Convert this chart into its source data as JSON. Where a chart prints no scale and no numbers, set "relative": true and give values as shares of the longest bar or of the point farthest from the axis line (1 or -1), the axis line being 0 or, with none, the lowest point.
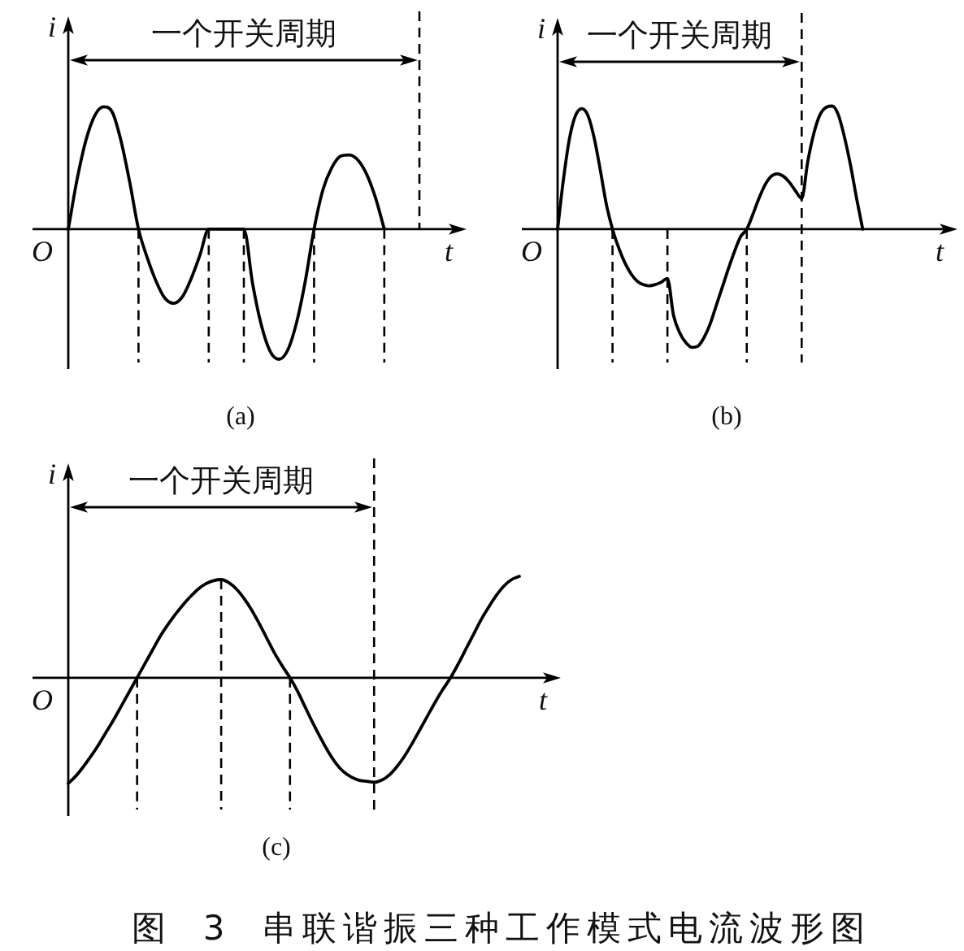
{
  "chart_data": [
    {
      "type": "line",
      "title": "(a)",
      "xlabel": "t",
      "ylabel": "i",
      "annotations": [
        "一个开关周期",
        "O"
      ],
      "relative": true,
      "tick_labels": false,
      "marker": "none",
      "line_style": "solid",
      "categories": [
        null,
        null,
        null,
        null,
        null,
        null,
        null,
        null,
        null,
        null,
        null,
        null,
        null,
        null,
        null,
        null,
        null,
        null,
        null,
        null,
        null,
        null,
        null,
        null,
        null,
        null,
        null,
        null,
        null,
        null,
        null,
        null,
        null,
        null,
        null,
        null,
        null,
        null,
        null,
        null,
        null,
        null,
        null,
        null,
        null,
        null
      ],
      "series": [
        {
          "color": "#000000",
          "values": [
            0,
            0.38,
            0.68,
            0.87,
            0.94,
            0.9,
            0.68,
            0.36,
            0,
            -0.22,
            -0.4,
            -0.53,
            -0.57,
            -0.52,
            -0.38,
            -0.2,
            0,
            0,
            0,
            0,
            0,
            -0.42,
            -0.74,
            -0.94,
            -1,
            -0.93,
            -0.72,
            -0.4,
            0,
            0.3,
            0.47,
            0.56,
            0.57,
            0.53,
            0.42,
            0.24,
            0,
            null,
            null,
            null,
            null,
            null,
            null,
            null,
            null,
            null
          ]
        }
      ]
    },
    {
      "type": "line",
      "title": "(b)",
      "xlabel": "t",
      "ylabel": "i",
      "annotations": [
        "一个开关周期",
        "O"
      ],
      "relative": true,
      "tick_labels": false,
      "marker": "none",
      "line_style": "solid",
      "categories": [
        null,
        null,
        null,
        null,
        null,
        null,
        null,
        null,
        null,
        null,
        null,
        null,
        null,
        null,
        null,
        null,
        null,
        null,
        null,
        null,
        null,
        null,
        null,
        null,
        null,
        null,
        null,
        null,
        null,
        null,
        null,
        null,
        null,
        null,
        null,
        null,
        null,
        null,
        null,
        null,
        null,
        null,
        null,
        null,
        null,
        null,
        null,
        null,
        null,
        null,
        null,
        null,
        null,
        null,
        null,
        null,
        null,
        null,
        null,
        null,
        null,
        null,
        null,
        null,
        null,
        null
      ],
      "series": [
        {
          "color": "#000000",
          "values": [
            0,
            0.42,
            0.75,
            0.93,
            0.98,
            0.92,
            0.74,
            0.48,
            0.2,
            0,
            -0.15,
            -0.27,
            -0.36,
            -0.42,
            -0.45,
            -0.46,
            -0.45,
            -0.43,
            -0.4,
            -0.7,
            -0.84,
            -0.92,
            -0.96,
            -0.95,
            -0.88,
            -0.77,
            -0.62,
            -0.47,
            -0.32,
            -0.18,
            -0.06,
            0,
            0.12,
            0.25,
            0.36,
            0.43,
            0.45,
            0.43,
            0.38,
            0.31,
            0.25,
            0.55,
            0.78,
            0.93,
            0.99,
            1,
            0.93,
            0.75,
            0.52,
            0.25,
            0,
            null,
            null,
            null,
            null,
            null,
            null,
            null,
            null,
            null,
            null,
            null,
            null,
            null,
            null,
            null
          ]
        }
      ]
    },
    {
      "type": "line",
      "title": "(c)",
      "xlabel": "t",
      "ylabel": "i",
      "annotations": [
        "一个开关周期",
        "O",
        "图 3 串联谐振三种工作模式电流波形图"
      ],
      "relative": true,
      "tick_labels": false,
      "marker": "none",
      "line_style": "solid",
      "categories": [
        null,
        null,
        null,
        null,
        null,
        null,
        null,
        null,
        null,
        null,
        null,
        null,
        null,
        null,
        null,
        null,
        null,
        null,
        null,
        null,
        null,
        null,
        null,
        null,
        null,
        null,
        null,
        null,
        null,
        null,
        null,
        null,
        null,
        null,
        null,
        null,
        null,
        null,
        null,
        null,
        null,
        null,
        null,
        null,
        null,
        null,
        null,
        null,
        null,
        null,
        null,
        null,
        null,
        null,
        null,
        null,
        null,
        null,
        null,
        null,
        null,
        null,
        null,
        null,
        null
      ],
      "series": [
        {
          "color": "#000000",
          "values": [
            -1,
            -0.93,
            -0.84,
            -0.74,
            -0.63,
            -0.51,
            -0.39,
            -0.26,
            -0.13,
            0,
            0.13,
            0.26,
            0.39,
            0.5,
            0.6,
            0.69,
            0.77,
            0.84,
            0.89,
            0.92,
            0.93,
            0.9,
            0.84,
            0.75,
            0.64,
            0.51,
            0.37,
            0.23,
            0.11,
            0,
            -0.13,
            -0.28,
            -0.43,
            -0.57,
            -0.7,
            -0.81,
            -0.89,
            -0.94,
            -0.97,
            -0.98,
            -0.99,
            -0.97,
            -0.92,
            -0.84,
            -0.74,
            -0.62,
            -0.49,
            -0.36,
            -0.23,
            -0.11,
            0,
            0.13,
            0.27,
            0.41,
            0.55,
            0.67,
            0.78,
            0.87,
            0.93,
            0.96,
            null,
            null,
            null,
            null,
            null
          ]
        }
      ]
    }
  ]
}
